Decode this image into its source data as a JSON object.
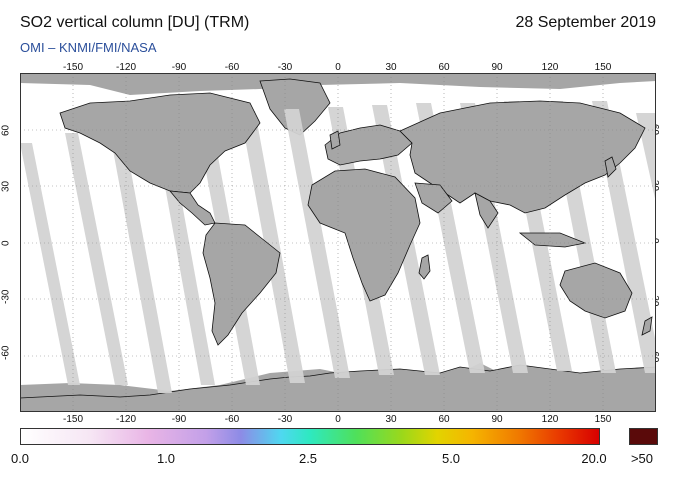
{
  "header": {
    "title": "SO2 vertical column [DU] (TRM)",
    "date": "28 September 2019",
    "credit": "OMI  –  KNMI/FMI/NASA"
  },
  "map": {
    "lon_ticks": [
      "-150",
      "-120",
      "-90",
      "-60",
      "-30",
      "0",
      "30",
      "60",
      "90",
      "120",
      "150"
    ],
    "lat_ticks": [
      "60",
      "30",
      "0",
      "-30",
      "-60"
    ],
    "colors": {
      "land": "#a6a6a6",
      "coverage": "#ffffff",
      "gap": "#d3d3d3",
      "coast": "#111111"
    }
  },
  "colorbar": {
    "labels": [
      "0.0",
      "1.0",
      "2.5",
      "5.0",
      "20.0",
      ">50"
    ],
    "over_color": "#5a0a0a"
  }
}
